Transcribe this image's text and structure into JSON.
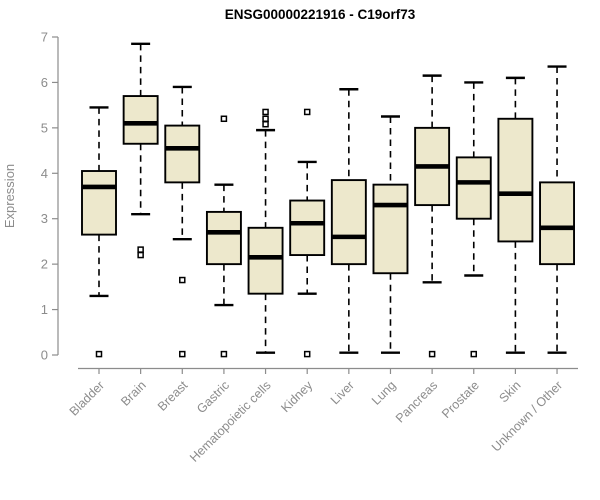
{
  "figure": {
    "title": "ENSG00000221916 - C19orf73"
  },
  "chart_data": {
    "type": "boxplot",
    "title": "ENSG00000221916 - C19orf73",
    "xlabel": "",
    "ylabel": "Expression",
    "ylim": [
      0,
      7
    ],
    "yticks": [
      0,
      1,
      2,
      3,
      4,
      5,
      6,
      7
    ],
    "grid": "off",
    "legend": "none",
    "categories": [
      "Bladder",
      "Brain",
      "Breast",
      "Gastric",
      "Hematopoietic cells",
      "Kidney",
      "Liver",
      "Lung",
      "Pancreas",
      "Prostate",
      "Skin",
      "Unknown / Other"
    ],
    "boxes": [
      {
        "category": "Bladder",
        "whisker_low": 1.3,
        "q1": 2.65,
        "median": 3.7,
        "q3": 4.05,
        "whisker_high": 5.45,
        "outliers": [
          0.02
        ]
      },
      {
        "category": "Brain",
        "whisker_low": 3.1,
        "q1": 4.65,
        "median": 5.1,
        "q3": 5.7,
        "whisker_high": 6.85,
        "outliers": [
          2.2,
          2.32
        ]
      },
      {
        "category": "Breast",
        "whisker_low": 2.55,
        "q1": 3.8,
        "median": 4.55,
        "q3": 5.05,
        "whisker_high": 5.9,
        "outliers": [
          1.65,
          0.02
        ]
      },
      {
        "category": "Gastric",
        "whisker_low": 1.1,
        "q1": 2.0,
        "median": 2.7,
        "q3": 3.15,
        "whisker_high": 3.75,
        "outliers": [
          5.2,
          0.02
        ]
      },
      {
        "category": "Hematopoietic cells",
        "whisker_low": 0.05,
        "q1": 1.35,
        "median": 2.15,
        "q3": 2.8,
        "whisker_high": 4.95,
        "outliers": [
          5.35,
          5.2,
          5.08
        ]
      },
      {
        "category": "Kidney",
        "whisker_low": 1.35,
        "q1": 2.2,
        "median": 2.9,
        "q3": 3.4,
        "whisker_high": 4.25,
        "outliers": [
          5.35,
          0.02
        ]
      },
      {
        "category": "Liver",
        "whisker_low": 0.05,
        "q1": 2.0,
        "median": 2.6,
        "q3": 3.85,
        "whisker_high": 5.85,
        "outliers": []
      },
      {
        "category": "Lung",
        "whisker_low": 0.05,
        "q1": 1.8,
        "median": 3.3,
        "q3": 3.75,
        "whisker_high": 5.25,
        "outliers": []
      },
      {
        "category": "Pancreas",
        "whisker_low": 1.6,
        "q1": 3.3,
        "median": 4.15,
        "q3": 5.0,
        "whisker_high": 6.15,
        "outliers": [
          0.02
        ]
      },
      {
        "category": "Prostate",
        "whisker_low": 1.75,
        "q1": 3.0,
        "median": 3.8,
        "q3": 4.35,
        "whisker_high": 6.0,
        "outliers": [
          0.02
        ]
      },
      {
        "category": "Skin",
        "whisker_low": 0.05,
        "q1": 2.5,
        "median": 3.55,
        "q3": 5.2,
        "whisker_high": 6.1,
        "outliers": []
      },
      {
        "category": "Unknown / Other",
        "whisker_low": 0.05,
        "q1": 2.0,
        "median": 2.8,
        "q3": 3.8,
        "whisker_high": 6.35,
        "outliers": []
      }
    ],
    "colors": {
      "box_fill": "#ede8cc",
      "box_stroke": "#000000",
      "median": "#000000",
      "whisker": "#000000",
      "outlier_stroke": "#000000",
      "outlier_fill": "#ffffff",
      "axis_line": "#8c8c8c",
      "axis_text": "#8c8c8c",
      "title_text": "#000000"
    }
  }
}
